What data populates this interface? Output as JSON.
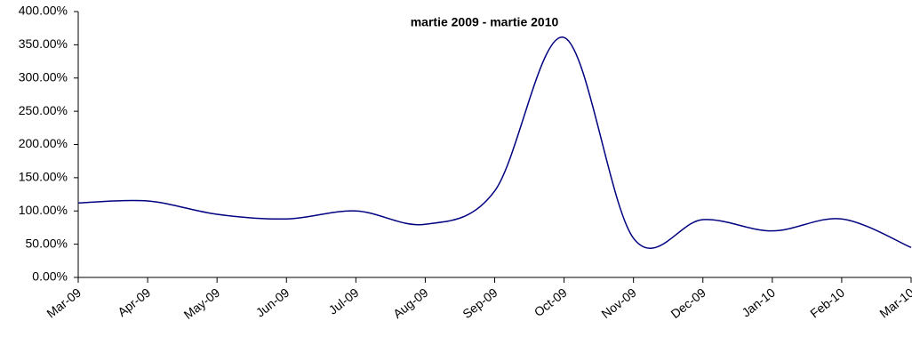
{
  "chart_data": {
    "type": "line",
    "subtitle": "martie 2009 -  martie 2010",
    "categories": [
      "Mar-09",
      "Apr-09",
      "May-09",
      "Jun-09",
      "Jul-09",
      "Aug-09",
      "Sep-09",
      "Oct-09",
      "Nov-09",
      "Dec-09",
      "Jan-10",
      "Feb-10",
      "Mar-10"
    ],
    "values": [
      112,
      115,
      95,
      88,
      100,
      80,
      130,
      361,
      59,
      87,
      70,
      88,
      45
    ],
    "color": "#000080",
    "ylim": [
      0,
      400
    ],
    "yticks": [
      {
        "value": 0,
        "label": "0.00%"
      },
      {
        "value": 50,
        "label": "50.00%"
      },
      {
        "value": 100,
        "label": "100.00%"
      },
      {
        "value": 150,
        "label": "150.00%"
      },
      {
        "value": 200,
        "label": "200.00%"
      },
      {
        "value": 250,
        "label": "250.00%"
      },
      {
        "value": 300,
        "label": "300.00%"
      },
      {
        "value": 350,
        "label": "350.00%"
      },
      {
        "value": 400,
        "label": "400.00%"
      }
    ],
    "grid": false
  }
}
